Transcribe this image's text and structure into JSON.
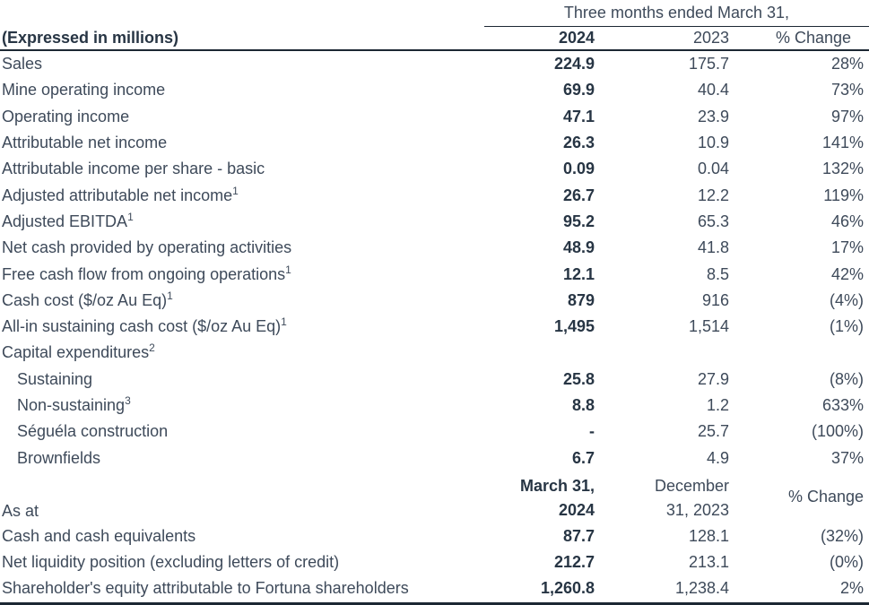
{
  "colors": {
    "text": "#3e4a5a",
    "bold": "#273544",
    "rule": "#1c2733"
  },
  "header": {
    "span_header": "Three months ended March 31,",
    "left_label": "(Expressed in millions)",
    "col_2024": "2024",
    "col_2023": "2023",
    "col_change": "% Change"
  },
  "rows": [
    {
      "label": "Sales",
      "v2024": "224.9",
      "v2023": "175.7",
      "change": "28%"
    },
    {
      "label": "Mine operating income",
      "v2024": "69.9",
      "v2023": "40.4",
      "change": "73%"
    },
    {
      "label": "Operating income",
      "v2024": "47.1",
      "v2023": "23.9",
      "change": "97%"
    },
    {
      "label": "Attributable net income",
      "v2024": "26.3",
      "v2023": "10.9",
      "change": "141%"
    },
    {
      "label": "Attributable income per share - basic",
      "v2024": "0.09",
      "v2023": "0.04",
      "change": "132%"
    },
    {
      "label": "Adjusted attributable net income",
      "sup": "1",
      "v2024": "26.7",
      "v2023": "12.2",
      "change": "119%"
    },
    {
      "label": "Adjusted EBITDA",
      "sup": "1",
      "v2024": "95.2",
      "v2023": "65.3",
      "change": "46%"
    },
    {
      "label": "Net cash provided by operating activities",
      "v2024": "48.9",
      "v2023": "41.8",
      "change": "17%"
    },
    {
      "label": "Free cash flow from ongoing operations",
      "sup": "1",
      "v2024": "12.1",
      "v2023": "8.5",
      "change": "42%"
    },
    {
      "label": "Cash cost ($/oz Au Eq)",
      "sup": "1",
      "v2024": "879",
      "v2023": "916",
      "change": "(4%)"
    },
    {
      "label": "All-in sustaining cash cost ($/oz Au Eq)",
      "sup": "1",
      "v2024": "1,495",
      "v2023": "1,514",
      "change": "(1%)"
    },
    {
      "label": "Capital expenditures",
      "sup": "2",
      "v2024": "",
      "v2023": "",
      "change": ""
    },
    {
      "label": "Sustaining",
      "v2024": "25.8",
      "v2023": "27.9",
      "change": "(8%)"
    },
    {
      "label": "Non-sustaining",
      "sup": "3",
      "v2024": "8.8",
      "v2023": "1.2",
      "change": "633%"
    },
    {
      "label": "Séguéla construction",
      "v2024": "-",
      "v2023": "25.7",
      "change": "(100%)"
    },
    {
      "label": "Brownfields",
      "v2024": "6.7",
      "v2023": "4.9",
      "change": "37%"
    }
  ],
  "as_at": {
    "label": "As at",
    "col1_line1": "March 31,",
    "col1_line2": "2024",
    "col2_line1": "December",
    "col2_line2": "31, 2023",
    "col_change": "% Change"
  },
  "as_at_rows": [
    {
      "label": "Cash and cash equivalents",
      "v2024": "87.7",
      "v2023": "128.1",
      "change": "(32%)"
    },
    {
      "label": "Net liquidity position (excluding letters of credit)",
      "v2024": "212.7",
      "v2023": "213.1",
      "change": "(0%)"
    },
    {
      "label": "Shareholder's equity attributable to Fortuna shareholders",
      "v2024": "1,260.8",
      "v2023": "1,238.4",
      "change": "2%"
    }
  ]
}
